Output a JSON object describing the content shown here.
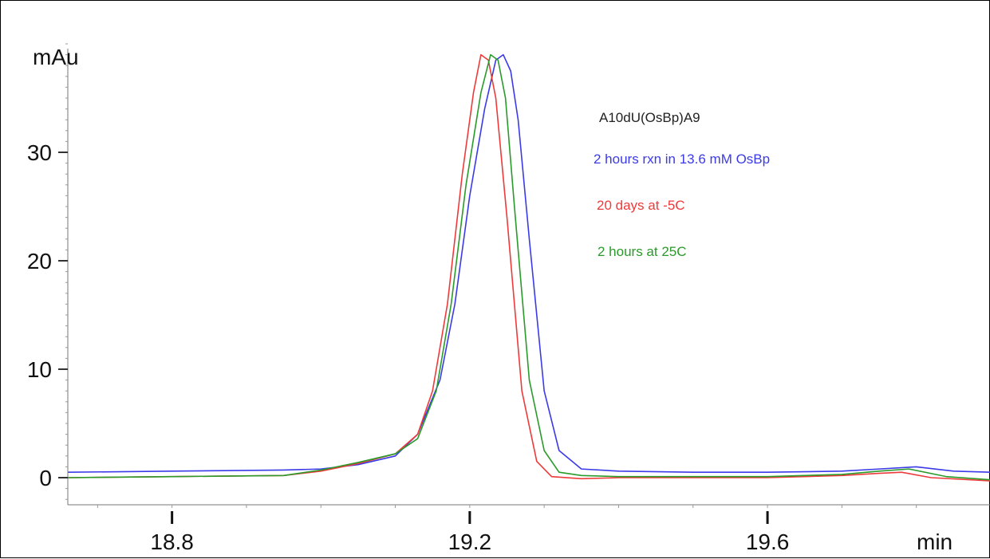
{
  "chart_data": {
    "type": "line",
    "title": "",
    "ylabel": "mAu",
    "xlabel": "min",
    "xlim": [
      18.66,
      19.9
    ],
    "ylim": [
      -2.5,
      40
    ],
    "x_ticks": [
      18.8,
      19.2,
      19.6
    ],
    "x_tick_labels": [
      "18.8",
      "19.2",
      "19.6"
    ],
    "y_ticks": [
      0,
      10,
      20,
      30
    ],
    "y_tick_labels": [
      "0",
      "10",
      "20",
      "30"
    ],
    "grid": false,
    "annotations": [
      {
        "text": "A10dU(OsBp)A9",
        "color": "#222222"
      },
      {
        "text": "2 hours rxn in 13.6 mM OsBp",
        "color": "#3a3ae8"
      },
      {
        "text": "20 days at -5C",
        "color": "#ee3a3a"
      },
      {
        "text": " 2 hours at 25C",
        "color": "#2a9a2a"
      }
    ],
    "series": [
      {
        "color": "#3a3ae8",
        "x": [
          18.66,
          18.8,
          18.95,
          19.0,
          19.05,
          19.1,
          19.13,
          19.16,
          19.18,
          19.2,
          19.22,
          19.235,
          19.245,
          19.255,
          19.265,
          19.28,
          19.3,
          19.32,
          19.35,
          19.4,
          19.5,
          19.6,
          19.7,
          19.75,
          19.8,
          19.85,
          19.9
        ],
        "y": [
          0.5,
          0.6,
          0.7,
          0.8,
          1.2,
          2.0,
          4.0,
          9.0,
          16.0,
          26.0,
          34.0,
          38.5,
          39.0,
          37.5,
          33.0,
          22.0,
          8.0,
          2.5,
          0.8,
          0.6,
          0.5,
          0.5,
          0.6,
          0.8,
          1.0,
          0.6,
          0.5
        ]
      },
      {
        "color": "#ee3a3a",
        "x": [
          18.66,
          18.8,
          18.95,
          19.0,
          19.05,
          19.1,
          19.13,
          19.15,
          19.17,
          19.19,
          19.205,
          19.215,
          19.225,
          19.235,
          19.25,
          19.27,
          19.29,
          19.31,
          19.35,
          19.4,
          19.5,
          19.6,
          19.7,
          19.75,
          19.78,
          19.82,
          19.9
        ],
        "y": [
          0.0,
          0.1,
          0.2,
          0.6,
          1.3,
          2.2,
          4.0,
          8.0,
          16.0,
          28.0,
          35.5,
          39.0,
          38.5,
          35.0,
          24.0,
          8.0,
          1.5,
          0.1,
          -0.1,
          0.0,
          0.0,
          0.0,
          0.2,
          0.4,
          0.5,
          0.0,
          -0.3
        ]
      },
      {
        "color": "#2a9a2a",
        "x": [
          18.66,
          18.8,
          18.95,
          19.0,
          19.05,
          19.1,
          19.13,
          19.155,
          19.175,
          19.195,
          19.215,
          19.228,
          19.238,
          19.248,
          19.26,
          19.28,
          19.3,
          19.32,
          19.35,
          19.4,
          19.5,
          19.6,
          19.7,
          19.75,
          19.79,
          19.84,
          19.9
        ],
        "y": [
          0.0,
          0.1,
          0.2,
          0.7,
          1.4,
          2.2,
          3.6,
          8.0,
          16.0,
          27.0,
          35.5,
          39.0,
          38.5,
          35.0,
          25.0,
          9.0,
          2.5,
          0.5,
          0.2,
          0.1,
          0.1,
          0.1,
          0.3,
          0.6,
          0.8,
          0.1,
          -0.2
        ]
      }
    ]
  }
}
